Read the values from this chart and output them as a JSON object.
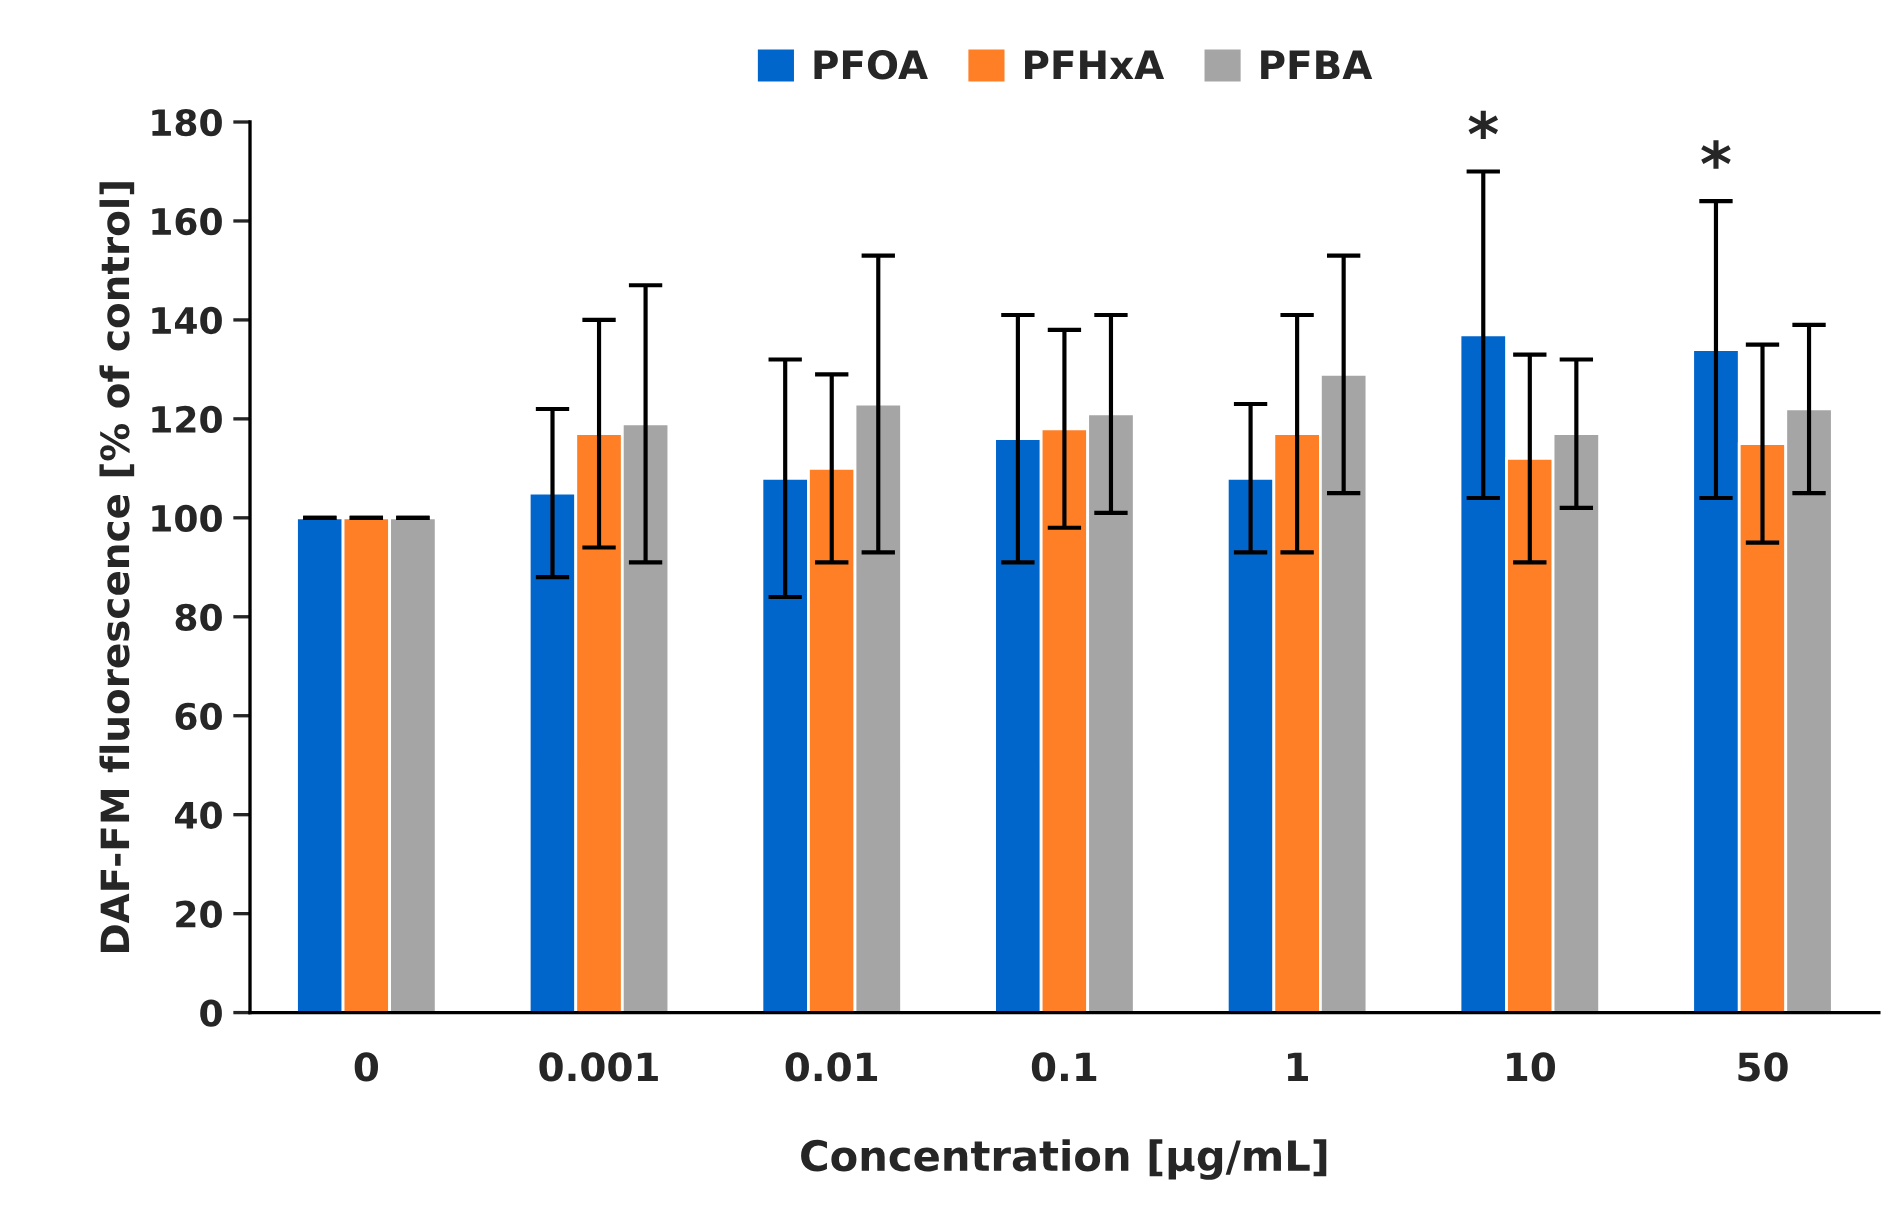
{
  "chart_data": {
    "type": "bar",
    "xlabel": "Concentration [µg/mL]",
    "ylabel": "DAF-FM fluorescence [% of control]",
    "categories": [
      "0",
      "0.001",
      "0.01",
      "0.1",
      "1",
      "10",
      "50"
    ],
    "series": [
      {
        "name": "PFOA",
        "color": "#0066cc",
        "values": [
          100,
          105,
          108,
          116,
          108,
          137,
          134
        ],
        "errors": [
          0,
          17,
          24,
          25,
          15,
          33,
          30
        ]
      },
      {
        "name": "PFHxA",
        "color": "#ff7f27",
        "values": [
          100,
          117,
          110,
          118,
          117,
          112,
          115
        ],
        "errors": [
          0,
          23,
          19,
          20,
          24,
          21,
          20
        ]
      },
      {
        "name": "PFBA",
        "color": "#a5a5a5",
        "values": [
          100,
          119,
          123,
          121,
          129,
          117,
          122
        ],
        "errors": [
          0,
          28,
          30,
          20,
          24,
          15,
          17
        ]
      }
    ],
    "ylim": [
      0,
      180
    ],
    "yticks": [
      0,
      20,
      40,
      60,
      80,
      100,
      120,
      140,
      160,
      180
    ],
    "annotations": [
      "*",
      "*"
    ],
    "legend": "top",
    "grid": false
  }
}
